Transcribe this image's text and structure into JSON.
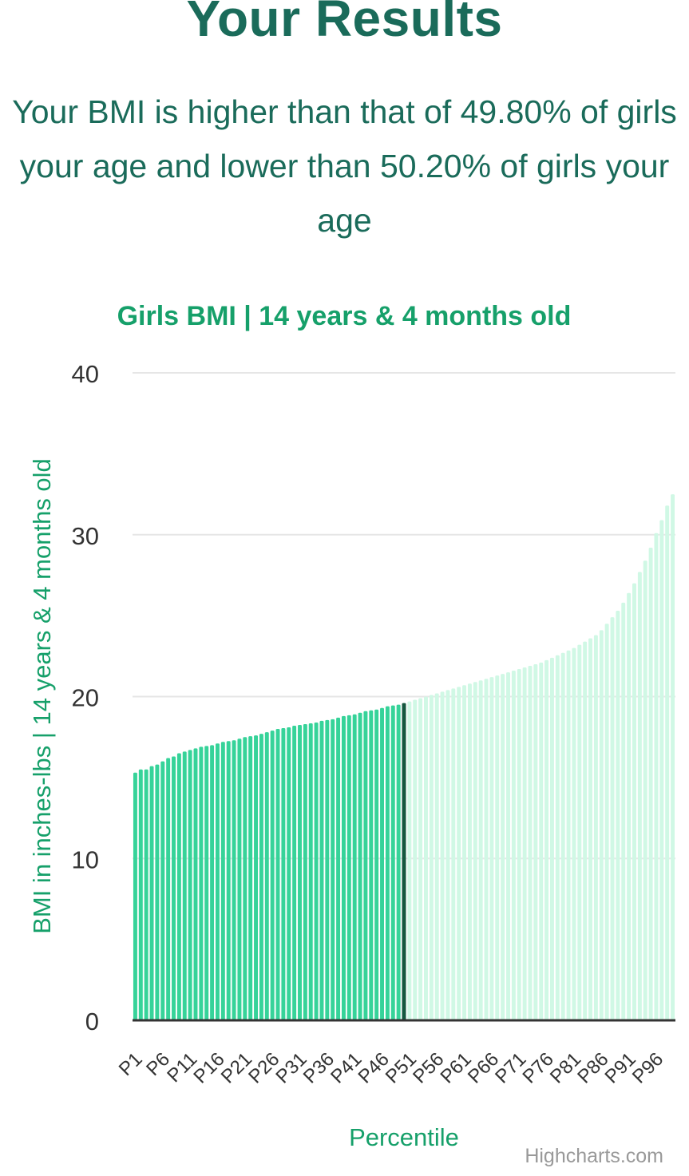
{
  "page": {
    "title": "Your Results",
    "summary": "Your BMI is higher than that of 49.80% of girls your age and lower than 50.20% of girls your age",
    "credit": "Highcharts.com"
  },
  "colors": {
    "below": "#36d399",
    "above": "#d0f8e5",
    "marker": "#15573f",
    "title": "#1a6b5a",
    "chart_title": "#16a06a",
    "axis_label": "#16a06a",
    "grid": "#e6e6e6",
    "baseline": "#333333"
  },
  "chart_data": {
    "type": "bar",
    "title": "Girls BMI | 14 years & 4 months old",
    "xlabel": "Percentile",
    "ylabel": "BMI in inches-lbs | 14 years & 4 months old",
    "ylim": [
      0,
      40
    ],
    "yticks": [
      0,
      10,
      20,
      30,
      40
    ],
    "grid": true,
    "user_percentile_index": 49,
    "tick_labels": [
      "P1",
      "P6",
      "P11",
      "P16",
      "P21",
      "P26",
      "P31",
      "P36",
      "P41",
      "P46",
      "P51",
      "P56",
      "P61",
      "P66",
      "P71",
      "P76",
      "P81",
      "P86",
      "P91",
      "P96"
    ],
    "categories": [
      "P1",
      "P2",
      "P3",
      "P4",
      "P5",
      "P6",
      "P7",
      "P8",
      "P9",
      "P10",
      "P11",
      "P12",
      "P13",
      "P14",
      "P15",
      "P16",
      "P17",
      "P18",
      "P19",
      "P20",
      "P21",
      "P22",
      "P23",
      "P24",
      "P25",
      "P26",
      "P27",
      "P28",
      "P29",
      "P30",
      "P31",
      "P32",
      "P33",
      "P34",
      "P35",
      "P36",
      "P37",
      "P38",
      "P39",
      "P40",
      "P41",
      "P42",
      "P43",
      "P44",
      "P45",
      "P46",
      "P47",
      "P48",
      "P49",
      "P50",
      "P51",
      "P52",
      "P53",
      "P54",
      "P55",
      "P56",
      "P57",
      "P58",
      "P59",
      "P60",
      "P61",
      "P62",
      "P63",
      "P64",
      "P65",
      "P66",
      "P67",
      "P68",
      "P69",
      "P70",
      "P71",
      "P72",
      "P73",
      "P74",
      "P75",
      "P76",
      "P77",
      "P78",
      "P79",
      "P80",
      "P81",
      "P82",
      "P83",
      "P84",
      "P85",
      "P86",
      "P87",
      "P88",
      "P89",
      "P90",
      "P91",
      "P92",
      "P93",
      "P94",
      "P95",
      "P96",
      "P97",
      "P98",
      "P99"
    ],
    "values": [
      15.3,
      15.5,
      15.5,
      15.7,
      15.8,
      16.0,
      16.2,
      16.3,
      16.5,
      16.6,
      16.7,
      16.8,
      16.9,
      16.95,
      17.0,
      17.1,
      17.2,
      17.25,
      17.3,
      17.4,
      17.5,
      17.55,
      17.6,
      17.7,
      17.8,
      17.9,
      18.0,
      18.05,
      18.1,
      18.2,
      18.25,
      18.3,
      18.35,
      18.4,
      18.5,
      18.55,
      18.6,
      18.7,
      18.8,
      18.85,
      18.9,
      19.0,
      19.1,
      19.15,
      19.2,
      19.3,
      19.4,
      19.45,
      19.5,
      19.6,
      19.7,
      19.8,
      19.9,
      20.0,
      20.1,
      20.2,
      20.3,
      20.4,
      20.5,
      20.6,
      20.7,
      20.8,
      20.9,
      21.0,
      21.1,
      21.2,
      21.3,
      21.4,
      21.5,
      21.6,
      21.7,
      21.8,
      21.9,
      22.0,
      22.1,
      22.25,
      22.4,
      22.55,
      22.7,
      22.85,
      23.0,
      23.2,
      23.4,
      23.6,
      23.8,
      24.1,
      24.5,
      24.9,
      25.3,
      25.8,
      26.4,
      27.0,
      27.7,
      28.4,
      29.2,
      30.1,
      30.9,
      31.8,
      32.5
    ]
  }
}
